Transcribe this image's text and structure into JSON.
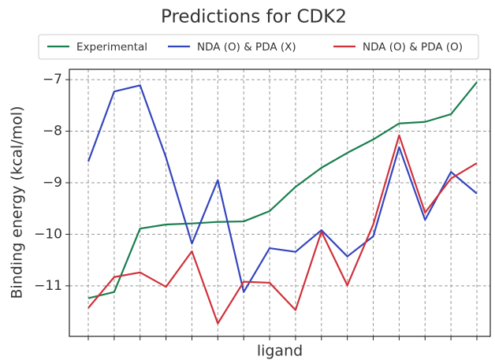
{
  "chart_data": {
    "type": "line",
    "title": "Predictions for CDK2",
    "x_label": "ligand",
    "y_label": "Binding energy (kcal/mol)",
    "categories": [
      null,
      null,
      null,
      null,
      null,
      null,
      null,
      null,
      null,
      null,
      null,
      null,
      null,
      null,
      null,
      null
    ],
    "series": [
      {
        "name": "Experimental",
        "color": "#1a7f4e",
        "values": [
          -11.24,
          -11.12,
          -9.89,
          -9.81,
          -9.79,
          -9.76,
          -9.75,
          -9.55,
          -9.08,
          -8.71,
          -8.42,
          -8.16,
          -7.85,
          -7.82,
          -7.67,
          -7.05
        ]
      },
      {
        "name": "NDA (O) & PDA (X)",
        "color": "#3446bd",
        "values": [
          -8.59,
          -7.23,
          -7.11,
          -8.51,
          -10.18,
          -8.95,
          -11.12,
          -10.27,
          -10.34,
          -9.92,
          -10.43,
          -10.04,
          -8.31,
          -9.72,
          -8.79,
          -9.21
        ]
      },
      {
        "name": "NDA (O) & PDA (O)",
        "color": "#d0313b",
        "values": [
          -11.43,
          -10.83,
          -10.74,
          -11.02,
          -10.33,
          -11.73,
          -10.92,
          -10.94,
          -11.47,
          -9.95,
          -10.99,
          -9.81,
          -8.08,
          -9.58,
          -8.92,
          -8.62
        ]
      }
    ],
    "ylim": [
      -11.98,
      -6.8
    ],
    "yticks": [
      {
        "value": -11,
        "label": "−11"
      },
      {
        "value": -10,
        "label": "−10"
      },
      {
        "value": -9,
        "label": "−9"
      },
      {
        "value": -8,
        "label": "−8"
      },
      {
        "value": -7,
        "label": "−7"
      }
    ],
    "grid": true,
    "legend": "top"
  }
}
